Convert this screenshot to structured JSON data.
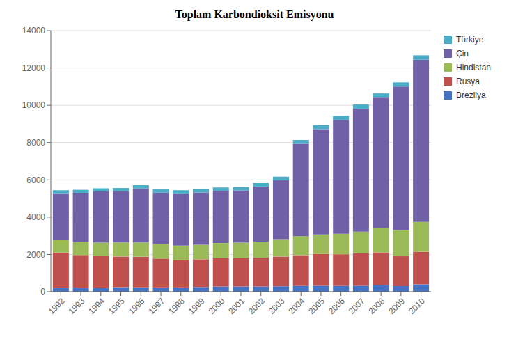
{
  "chart_data": {
    "type": "bar",
    "title": "Toplam Karbondioksit Emisyonu",
    "stacked": true,
    "grid": true,
    "legend": "right",
    "categories": [
      "1992",
      "1993",
      "1994",
      "1995",
      "1996",
      "1997",
      "1998",
      "1999",
      "2000",
      "2001",
      "2002",
      "2003",
      "2004",
      "2005",
      "2006",
      "2007",
      "2008",
      "2009",
      "2010"
    ],
    "series": [
      {
        "name": "Brezilya",
        "color": "#4472C4",
        "values": [
          200,
          220,
          210,
          240,
          230,
          230,
          230,
          250,
          280,
          280,
          280,
          290,
          310,
          320,
          310,
          320,
          360,
          300,
          390
        ]
      },
      {
        "name": "Rusya",
        "color": "#C0504D",
        "values": [
          1900,
          1750,
          1700,
          1650,
          1650,
          1550,
          1450,
          1490,
          1530,
          1530,
          1550,
          1600,
          1650,
          1700,
          1700,
          1750,
          1750,
          1600,
          1750
        ]
      },
      {
        "name": "Hindistan",
        "color": "#9BBB59",
        "values": [
          680,
          680,
          720,
          750,
          760,
          780,
          790,
          780,
          800,
          820,
          860,
          930,
          1020,
          1050,
          1100,
          1150,
          1300,
          1400,
          1600
        ]
      },
      {
        "name": "Çin",
        "color": "#7060A8",
        "values": [
          2500,
          2650,
          2750,
          2750,
          2900,
          2750,
          2800,
          2800,
          2800,
          2800,
          2950,
          3150,
          4950,
          5650,
          6100,
          6600,
          7000,
          7700,
          8700
        ]
      },
      {
        "name": "Türkiye",
        "color": "#4BACC6",
        "values": [
          160,
          165,
          165,
          170,
          170,
          175,
          170,
          175,
          180,
          180,
          185,
          200,
          210,
          215,
          220,
          220,
          225,
          225,
          240
        ]
      }
    ],
    "ylim": [
      0,
      14000
    ],
    "yticks": [
      0,
      2000,
      4000,
      6000,
      8000,
      10000,
      12000,
      14000
    ]
  }
}
